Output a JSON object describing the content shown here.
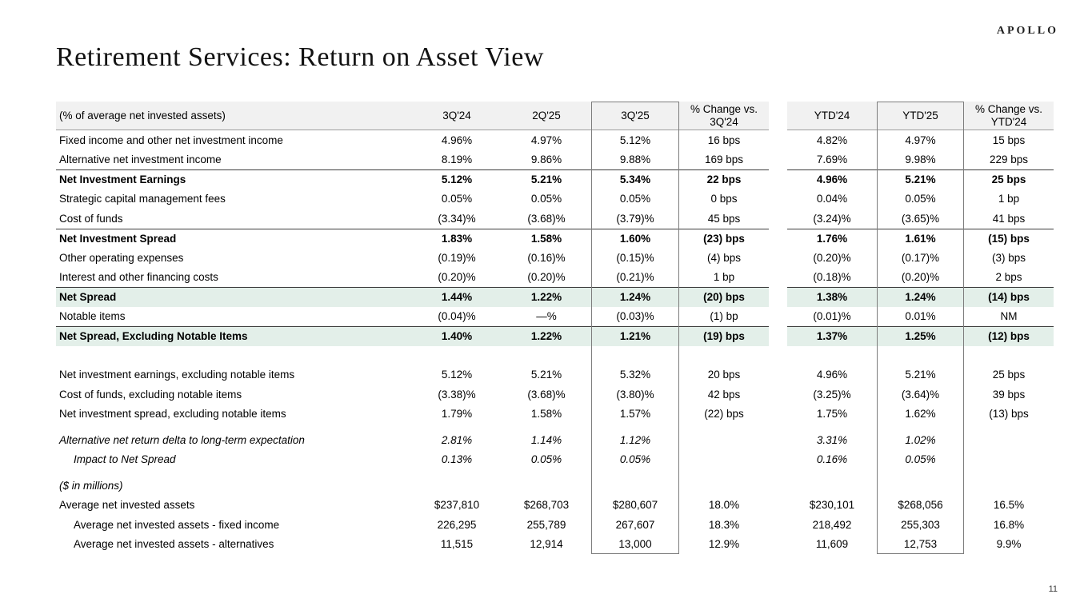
{
  "logo": "APOLLO",
  "title": "Retirement Services: Return on Asset View",
  "page_number": "11",
  "colors": {
    "highlight_green": "#e3efe9",
    "header_gray": "#f1f1f1",
    "section_rule": "#3d3d3d",
    "header_rule": "#9c9c9c",
    "column_box_border": "#7d7d7d"
  },
  "table": {
    "header": [
      "(% of average net invested assets)",
      "3Q'24",
      "2Q'25",
      "3Q'25",
      "% Change vs. 3Q'24",
      "YTD'24",
      "YTD'25",
      "% Change vs. YTD'24"
    ],
    "boxed_columns": [
      "3Q'25",
      "YTD'25"
    ],
    "rows": [
      {
        "label": "Fixed income and other net investment income",
        "values": [
          "4.96%",
          "4.97%",
          "5.12%",
          "16 bps",
          "4.82%",
          "4.97%",
          "15 bps"
        ]
      },
      {
        "label": "Alternative net investment income",
        "values": [
          "8.19%",
          "9.86%",
          "9.88%",
          "169 bps",
          "7.69%",
          "9.98%",
          "229 bps"
        ]
      },
      {
        "label": "Net Investment Earnings",
        "bold": true,
        "rule_top": true,
        "values": [
          "5.12%",
          "5.21%",
          "5.34%",
          "22 bps",
          "4.96%",
          "5.21%",
          "25 bps"
        ]
      },
      {
        "label": "Strategic capital management fees",
        "values": [
          "0.05%",
          "0.05%",
          "0.05%",
          "0 bps",
          "0.04%",
          "0.05%",
          "1 bp"
        ]
      },
      {
        "label": "Cost of funds",
        "values": [
          "(3.34)%",
          "(3.68)%",
          "(3.79)%",
          "45 bps",
          "(3.24)%",
          "(3.65)%",
          "41 bps"
        ]
      },
      {
        "label": "Net Investment Spread",
        "bold": true,
        "rule_top": true,
        "values": [
          "1.83%",
          "1.58%",
          "1.60%",
          "(23) bps",
          "1.76%",
          "1.61%",
          "(15) bps"
        ]
      },
      {
        "label": "Other operating expenses",
        "values": [
          "(0.19)%",
          "(0.16)%",
          "(0.15)%",
          "(4) bps",
          "(0.20)%",
          "(0.17)%",
          "(3) bps"
        ]
      },
      {
        "label": "Interest and other financing costs",
        "values": [
          "(0.20)%",
          "(0.20)%",
          "(0.21)%",
          "1 bp",
          "(0.18)%",
          "(0.20)%",
          "2 bps"
        ]
      },
      {
        "label": "Net Spread",
        "bold": true,
        "green": true,
        "rule_top": true,
        "values": [
          "1.44%",
          "1.22%",
          "1.24%",
          "(20) bps",
          "1.38%",
          "1.24%",
          "(14) bps"
        ]
      },
      {
        "label": "Notable items",
        "values": [
          "(0.04)%",
          "—%",
          "(0.03)%",
          "(1) bp",
          "(0.01)%",
          "0.01%",
          "NM"
        ]
      },
      {
        "label": "Net Spread, Excluding Notable Items",
        "bold": true,
        "green": true,
        "rule_top": true,
        "values": [
          "1.40%",
          "1.22%",
          "1.21%",
          "(19) bps",
          "1.37%",
          "1.25%",
          "(12) bps"
        ]
      },
      {
        "spacer": true,
        "height": 24
      },
      {
        "label": "Net investment earnings, excluding notable items",
        "values": [
          "5.12%",
          "5.21%",
          "5.32%",
          "20 bps",
          "4.96%",
          "5.21%",
          "25 bps"
        ]
      },
      {
        "label": "Cost of funds, excluding notable items",
        "values": [
          "(3.38)%",
          "(3.68)%",
          "(3.80)%",
          "42 bps",
          "(3.25)%",
          "(3.64)%",
          "39 bps"
        ]
      },
      {
        "label": "Net investment spread, excluding notable items",
        "values": [
          "1.79%",
          "1.58%",
          "1.57%",
          "(22) bps",
          "1.75%",
          "1.62%",
          "(13) bps"
        ]
      },
      {
        "spacer": true,
        "height": 8
      },
      {
        "label": "Alternative net return delta to long-term expectation",
        "italic": true,
        "values": [
          "2.81%",
          "1.14%",
          "1.12%",
          "",
          "3.31%",
          "1.02%",
          ""
        ]
      },
      {
        "label": "Impact to Net Spread",
        "italic": true,
        "indent": 1,
        "values": [
          "0.13%",
          "0.05%",
          "0.05%",
          "",
          "0.16%",
          "0.05%",
          ""
        ]
      },
      {
        "spacer": true,
        "height": 8
      },
      {
        "label": "($ in millions)",
        "italic": true,
        "values": [
          "",
          "",
          "",
          "",
          "",
          "",
          ""
        ]
      },
      {
        "label": "Average net invested assets",
        "values": [
          "$237,810",
          "$268,703",
          "$280,607",
          "18.0%",
          "$230,101",
          "$268,056",
          "16.5%"
        ]
      },
      {
        "label": "Average net invested assets - fixed income",
        "indent": 1,
        "values": [
          "226,295",
          "255,789",
          "267,607",
          "18.3%",
          "218,492",
          "255,303",
          "16.8%"
        ]
      },
      {
        "label": "Average net invested assets - alternatives",
        "indent": 1,
        "values": [
          "11,515",
          "12,914",
          "13,000",
          "12.9%",
          "11,609",
          "12,753",
          "9.9%"
        ]
      }
    ]
  }
}
